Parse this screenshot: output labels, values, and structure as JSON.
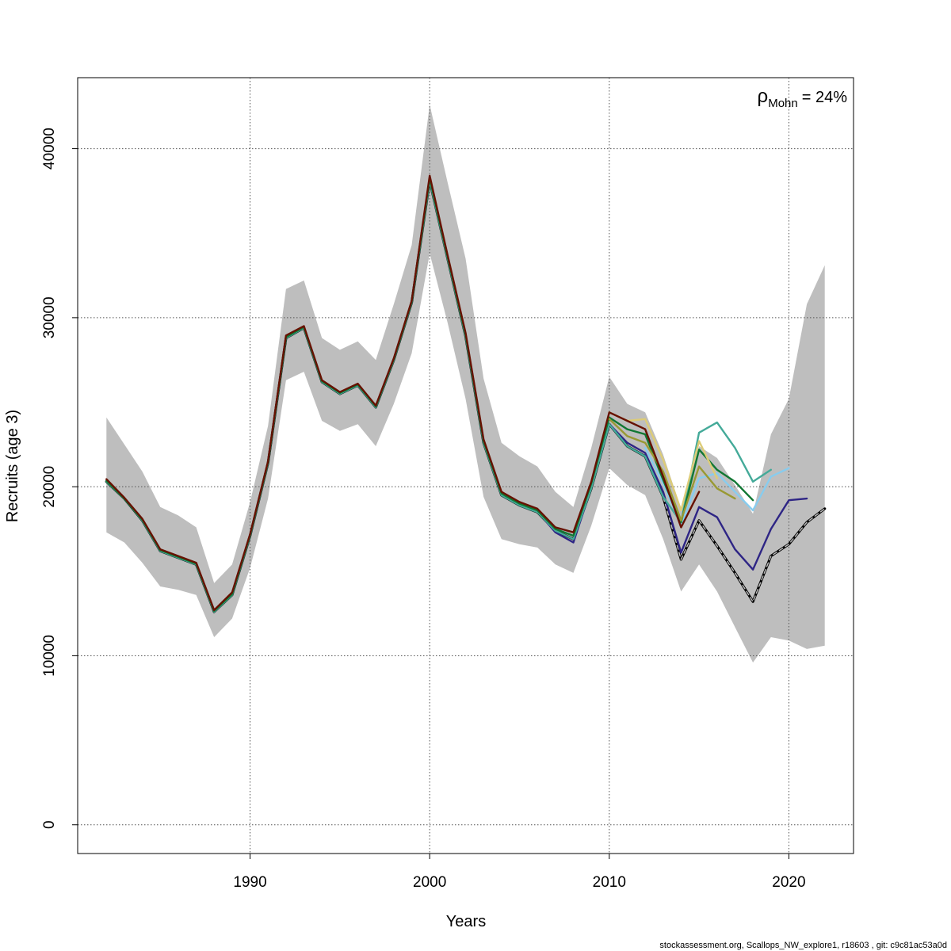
{
  "chart_data": {
    "type": "line",
    "title": "",
    "xlabel": "Years",
    "ylabel": "Recruits (age 3)",
    "xlim": [
      1980.4,
      2023.6
    ],
    "ylim": [
      -1700,
      44200
    ],
    "xticks": [
      1990,
      2000,
      2010,
      2020
    ],
    "yticks": [
      0,
      10000,
      20000,
      30000,
      40000
    ],
    "grid": true,
    "annotation": {
      "symbol": "ρ",
      "subscript": "Mohn",
      "text": "= 24%"
    },
    "footer": "stockassessment.org, Scallops_NW_explore1, r18603 , git: c9c81ac53a0d",
    "confidence_band": {
      "color": "#bebebe",
      "x": [
        1982,
        1983,
        1984,
        1985,
        1986,
        1987,
        1988,
        1989,
        1990,
        1991,
        1992,
        1993,
        1994,
        1995,
        1996,
        1997,
        1998,
        1999,
        2000,
        2001,
        2002,
        2003,
        2004,
        2005,
        2006,
        2007,
        2008,
        2009,
        2010,
        2011,
        2012,
        2013,
        2014,
        2015,
        2016,
        2017,
        2018,
        2019,
        2020,
        2021,
        2022
      ],
      "lower": [
        17300,
        16700,
        15500,
        14100,
        13900,
        13600,
        11100,
        12200,
        15200,
        19300,
        26300,
        26800,
        23900,
        23300,
        23700,
        22400,
        24900,
        27900,
        33800,
        29700,
        25200,
        19400,
        16900,
        16600,
        16400,
        15400,
        14900,
        17700,
        21100,
        20100,
        19500,
        16900,
        13800,
        15400,
        13800,
        11700,
        9600,
        11100,
        10900,
        10400,
        10600
      ],
      "upper": [
        24100,
        22500,
        20900,
        18800,
        18300,
        17600,
        14300,
        15400,
        19100,
        23600,
        31700,
        32200,
        28800,
        28100,
        28600,
        27500,
        30800,
        34300,
        42600,
        38000,
        33500,
        26400,
        22600,
        21800,
        21200,
        19700,
        18800,
        22300,
        26500,
        24900,
        24400,
        21900,
        18700,
        22400,
        21700,
        20100,
        18400,
        23100,
        25200,
        30800,
        33100
      ]
    },
    "series": [
      {
        "color": "#000000",
        "dashed": false,
        "width": 3.2,
        "x": [
          1982,
          1983,
          1984,
          1985,
          1986,
          1987,
          1988,
          1989,
          1990,
          1991,
          1992,
          1993,
          1994,
          1995,
          1996,
          1997,
          1998,
          1999,
          2000,
          2001,
          2002,
          2003,
          2004,
          2005,
          2006,
          2007,
          2008,
          2009,
          2010,
          2011,
          2012,
          2013,
          2014,
          2015,
          2016,
          2017,
          2018,
          2019,
          2020,
          2021,
          2022
        ],
        "values": [
          20300,
          19300,
          18000,
          16200,
          15800,
          15400,
          12600,
          13600,
          17100,
          21400,
          28800,
          29400,
          26200,
          25500,
          26000,
          24700,
          27500,
          30900,
          38100,
          33500,
          28900,
          22600,
          19500,
          18900,
          18500,
          17400,
          16900,
          19900,
          23700,
          22400,
          21800,
          19400,
          15700,
          18000,
          16500,
          14900,
          13200,
          15900,
          16600,
          17900,
          18700
        ]
      },
      {
        "color": "#bebebe",
        "dashed": true,
        "width": 1.4,
        "x": [
          1982,
          1983,
          1984,
          1985,
          1986,
          1987,
          1988,
          1989,
          1990,
          1991,
          1992,
          1993,
          1994,
          1995,
          1996,
          1997,
          1998,
          1999,
          2000,
          2001,
          2002,
          2003,
          2004,
          2005,
          2006,
          2007,
          2008,
          2009,
          2010,
          2011,
          2012,
          2013,
          2014,
          2015,
          2016,
          2017,
          2018,
          2019,
          2020,
          2021,
          2022
        ],
        "values": [
          20300,
          19300,
          18000,
          16200,
          15800,
          15400,
          12600,
          13600,
          17100,
          21400,
          28800,
          29400,
          26200,
          25500,
          26000,
          24700,
          27500,
          30900,
          38100,
          33500,
          28900,
          22600,
          19500,
          18900,
          18500,
          17400,
          16900,
          19900,
          23700,
          22400,
          21800,
          19400,
          15700,
          18000,
          16500,
          14900,
          13200,
          15900,
          16600,
          17900,
          18700
        ]
      },
      {
        "color": "#2e2585",
        "dashed": false,
        "width": 2.4,
        "x": [
          1982,
          1983,
          1984,
          1985,
          1986,
          1987,
          1988,
          1989,
          1990,
          1991,
          1992,
          1993,
          1994,
          1995,
          1996,
          1997,
          1998,
          1999,
          2000,
          2001,
          2002,
          2003,
          2004,
          2005,
          2006,
          2007,
          2008,
          2009,
          2010,
          2011,
          2012,
          2013,
          2014,
          2015,
          2016,
          2017,
          2018,
          2019,
          2020,
          2021
        ],
        "values": [
          20350,
          19300,
          18050,
          16250,
          15850,
          15450,
          12650,
          13650,
          17150,
          21450,
          28850,
          29450,
          26250,
          25550,
          26050,
          24750,
          27550,
          30950,
          38250,
          33600,
          29000,
          22650,
          19550,
          18950,
          18550,
          17300,
          16700,
          19950,
          23700,
          22600,
          22000,
          19700,
          16100,
          18800,
          18200,
          16300,
          15100,
          17500,
          19200,
          19300
        ]
      },
      {
        "color": "#44aa99",
        "dashed": false,
        "width": 2.4,
        "x": [
          1982,
          1983,
          1984,
          1985,
          1986,
          1987,
          1988,
          1989,
          1990,
          1991,
          1992,
          1993,
          1994,
          1995,
          1996,
          1997,
          1998,
          1999,
          2000,
          2001,
          2002,
          2003,
          2004,
          2005,
          2006,
          2007,
          2008,
          2009,
          2010,
          2011,
          2012,
          2013,
          2014,
          2015,
          2016,
          2017,
          2018,
          2019
        ],
        "values": [
          20300,
          19300,
          18000,
          16200,
          15800,
          15400,
          12600,
          13600,
          17100,
          21400,
          28800,
          29400,
          26200,
          25500,
          26000,
          24700,
          27500,
          30900,
          38100,
          33500,
          28900,
          22600,
          19500,
          18900,
          18500,
          17400,
          16900,
          19900,
          23700,
          22400,
          21800,
          19400,
          17900,
          23200,
          23800,
          22300,
          20300,
          21000
        ]
      },
      {
        "color": "#88ccee",
        "dashed": false,
        "width": 2.4,
        "x": [
          2012,
          2013,
          2014,
          2015,
          2016,
          2017,
          2018,
          2019,
          2020
        ],
        "values": [
          22300,
          20200,
          17700,
          20500,
          20800,
          19700,
          18600,
          20600,
          21100
        ]
      },
      {
        "color": "#117733",
        "dashed": false,
        "width": 2.4,
        "x": [
          1982,
          1983,
          1984,
          1985,
          1986,
          1987,
          1988,
          1989,
          1990,
          1991,
          1992,
          1993,
          1994,
          1995,
          1996,
          1997,
          1998,
          1999,
          2000,
          2001,
          2002,
          2003,
          2004,
          2005,
          2006,
          2007,
          2008,
          2009,
          2010,
          2011,
          2012,
          2013,
          2014,
          2015,
          2016,
          2017,
          2018
        ],
        "values": [
          20350,
          19300,
          18050,
          16250,
          15850,
          15450,
          12650,
          13650,
          17150,
          21450,
          28850,
          29450,
          26250,
          25550,
          26050,
          24750,
          27550,
          30950,
          38250,
          33600,
          29000,
          22700,
          19600,
          19000,
          18600,
          17500,
          17100,
          20200,
          24100,
          23400,
          23100,
          20400,
          17900,
          22200,
          21000,
          20300,
          19200
        ]
      },
      {
        "color": "#999933",
        "dashed": false,
        "width": 2.4,
        "x": [
          2010,
          2011,
          2012,
          2013,
          2014,
          2015,
          2016,
          2017
        ],
        "values": [
          24000,
          23000,
          22600,
          20900,
          18000,
          21200,
          19900,
          19300
        ]
      },
      {
        "color": "#ddcc77",
        "dashed": false,
        "width": 2.4,
        "x": [
          2010,
          2011,
          2012,
          2013,
          2014,
          2015,
          2016
        ],
        "values": [
          24400,
          23900,
          24000,
          21600,
          18600,
          22700,
          20500
        ]
      },
      {
        "color": "#661100",
        "dashed": false,
        "width": 2.4,
        "x": [
          1982,
          1983,
          1984,
          1985,
          1986,
          1987,
          1988,
          1989,
          1990,
          1991,
          1992,
          1993,
          1994,
          1995,
          1996,
          1997,
          1998,
          1999,
          2000,
          2001,
          2002,
          2003,
          2004,
          2005,
          2006,
          2007,
          2008,
          2009,
          2010,
          2011,
          2012,
          2013,
          2014,
          2015
        ],
        "values": [
          20450,
          19350,
          18100,
          16300,
          15900,
          15500,
          12700,
          13750,
          17200,
          21500,
          28950,
          29500,
          26300,
          25600,
          26100,
          24800,
          27600,
          31000,
          38400,
          33700,
          29100,
          22800,
          19700,
          19100,
          18700,
          17600,
          17300,
          20300,
          24400,
          23900,
          23400,
          20600,
          17600,
          19700
        ]
      }
    ]
  }
}
